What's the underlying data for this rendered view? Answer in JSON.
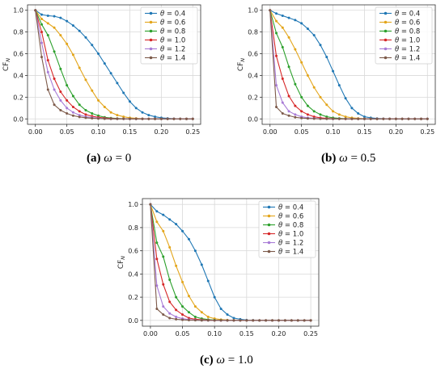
{
  "chart_data": [
    {
      "type": "line",
      "caption": {
        "letter": "(a)",
        "symbol": "ω",
        "value": "= 0"
      },
      "xlabel": "α",
      "ylabel": "CF_N",
      "xlim": [
        -0.0125,
        0.2625
      ],
      "ylim": [
        -0.05,
        1.05
      ],
      "xticks": [
        "0.00",
        "0.05",
        "0.10",
        "0.15",
        "0.20",
        "0.25"
      ],
      "yticks": [
        "0.0",
        "0.2",
        "0.4",
        "0.6",
        "0.8",
        "1.0"
      ],
      "grid": true,
      "legend_position": "top-right",
      "x": [
        0,
        0.01,
        0.02,
        0.03,
        0.04,
        0.05,
        0.06,
        0.07,
        0.08,
        0.09,
        0.1,
        0.11,
        0.12,
        0.13,
        0.14,
        0.15,
        0.16,
        0.17,
        0.18,
        0.19,
        0.2,
        0.21,
        0.22,
        0.23,
        0.24,
        0.25
      ],
      "series": [
        {
          "name": "θ = 0.4",
          "values": [
            1.0,
            0.96,
            0.95,
            0.945,
            0.93,
            0.9,
            0.86,
            0.81,
            0.75,
            0.68,
            0.6,
            0.51,
            0.42,
            0.33,
            0.24,
            0.16,
            0.1,
            0.06,
            0.035,
            0.02,
            0.01,
            0.005,
            0.002,
            0.001,
            0.0,
            0.0
          ]
        },
        {
          "name": "θ = 0.6",
          "values": [
            1.0,
            0.92,
            0.88,
            0.84,
            0.77,
            0.69,
            0.59,
            0.47,
            0.36,
            0.26,
            0.17,
            0.11,
            0.06,
            0.035,
            0.02,
            0.01,
            0.005,
            0.002,
            0.001,
            0.0,
            0.0,
            0.0,
            0.0,
            0.0,
            0.0,
            0.0
          ]
        },
        {
          "name": "θ = 0.8",
          "values": [
            1.0,
            0.87,
            0.77,
            0.62,
            0.46,
            0.31,
            0.21,
            0.13,
            0.08,
            0.05,
            0.03,
            0.015,
            0.008,
            0.004,
            0.002,
            0.001,
            0.0,
            0.0,
            0.0,
            0.0,
            0.0,
            0.0,
            0.0,
            0.0,
            0.0,
            0.0
          ]
        },
        {
          "name": "θ = 1.0",
          "values": [
            1.0,
            0.8,
            0.54,
            0.37,
            0.25,
            0.17,
            0.11,
            0.07,
            0.04,
            0.025,
            0.015,
            0.008,
            0.004,
            0.002,
            0.001,
            0.0,
            0.0,
            0.0,
            0.0,
            0.0,
            0.0,
            0.0,
            0.0,
            0.0,
            0.0,
            0.0
          ]
        },
        {
          "name": "θ = 1.2",
          "values": [
            1.0,
            0.7,
            0.43,
            0.27,
            0.17,
            0.1,
            0.06,
            0.035,
            0.02,
            0.012,
            0.006,
            0.003,
            0.001,
            0.0,
            0.0,
            0.0,
            0.0,
            0.0,
            0.0,
            0.0,
            0.0,
            0.0,
            0.0,
            0.0,
            0.0,
            0.0
          ]
        },
        {
          "name": "θ = 1.4",
          "values": [
            1.0,
            0.57,
            0.27,
            0.13,
            0.08,
            0.05,
            0.03,
            0.018,
            0.01,
            0.006,
            0.003,
            0.001,
            0.0,
            0.0,
            0.0,
            0.0,
            0.0,
            0.0,
            0.0,
            0.0,
            0.0,
            0.0,
            0.0,
            0.0,
            0.0,
            0.0
          ]
        }
      ]
    },
    {
      "type": "line",
      "caption": {
        "letter": "(b)",
        "symbol": "ω",
        "value": "= 0.5"
      },
      "xlabel": "α",
      "ylabel": "CF_N",
      "xlim": [
        -0.0125,
        0.2625
      ],
      "ylim": [
        -0.05,
        1.05
      ],
      "xticks": [
        "0.00",
        "0.05",
        "0.10",
        "0.15",
        "0.20",
        "0.25"
      ],
      "yticks": [
        "0.0",
        "0.2",
        "0.4",
        "0.6",
        "0.8",
        "1.0"
      ],
      "grid": true,
      "legend_position": "top-right",
      "x": [
        0,
        0.01,
        0.02,
        0.03,
        0.04,
        0.05,
        0.06,
        0.07,
        0.08,
        0.09,
        0.1,
        0.11,
        0.12,
        0.13,
        0.14,
        0.15,
        0.16,
        0.17,
        0.18,
        0.19,
        0.2,
        0.21,
        0.22,
        0.23,
        0.24,
        0.25
      ],
      "series": [
        {
          "name": "θ = 0.4",
          "values": [
            1.0,
            0.97,
            0.95,
            0.93,
            0.91,
            0.88,
            0.83,
            0.77,
            0.68,
            0.57,
            0.44,
            0.31,
            0.19,
            0.1,
            0.05,
            0.02,
            0.01,
            0.004,
            0.002,
            0.001,
            0.0,
            0.0,
            0.0,
            0.0,
            0.0,
            0.0
          ]
        },
        {
          "name": "θ = 0.6",
          "values": [
            1.0,
            0.9,
            0.84,
            0.75,
            0.64,
            0.52,
            0.4,
            0.29,
            0.2,
            0.13,
            0.07,
            0.04,
            0.02,
            0.01,
            0.005,
            0.002,
            0.001,
            0.0,
            0.0,
            0.0,
            0.0,
            0.0,
            0.0,
            0.0,
            0.0,
            0.0
          ]
        },
        {
          "name": "θ = 0.8",
          "values": [
            1.0,
            0.79,
            0.66,
            0.48,
            0.32,
            0.2,
            0.12,
            0.07,
            0.04,
            0.02,
            0.01,
            0.005,
            0.002,
            0.001,
            0.0,
            0.0,
            0.0,
            0.0,
            0.0,
            0.0,
            0.0,
            0.0,
            0.0,
            0.0,
            0.0,
            0.0
          ]
        },
        {
          "name": "θ = 1.0",
          "values": [
            1.0,
            0.58,
            0.37,
            0.21,
            0.12,
            0.07,
            0.04,
            0.02,
            0.01,
            0.005,
            0.002,
            0.001,
            0.0,
            0.0,
            0.0,
            0.0,
            0.0,
            0.0,
            0.0,
            0.0,
            0.0,
            0.0,
            0.0,
            0.0,
            0.0,
            0.0
          ]
        },
        {
          "name": "θ = 1.2",
          "values": [
            1.0,
            0.31,
            0.15,
            0.07,
            0.04,
            0.02,
            0.01,
            0.005,
            0.002,
            0.001,
            0.0,
            0.0,
            0.0,
            0.0,
            0.0,
            0.0,
            0.0,
            0.0,
            0.0,
            0.0,
            0.0,
            0.0,
            0.0,
            0.0,
            0.0,
            0.0
          ]
        },
        {
          "name": "θ = 1.4",
          "values": [
            1.0,
            0.11,
            0.05,
            0.03,
            0.015,
            0.008,
            0.004,
            0.002,
            0.001,
            0.0,
            0.0,
            0.0,
            0.0,
            0.0,
            0.0,
            0.0,
            0.0,
            0.0,
            0.0,
            0.0,
            0.0,
            0.0,
            0.0,
            0.0,
            0.0,
            0.0
          ]
        }
      ]
    },
    {
      "type": "line",
      "caption": {
        "letter": "(c)",
        "symbol": "ω",
        "value": "= 1.0"
      },
      "xlabel": "α",
      "ylabel": "CF_N",
      "xlim": [
        -0.0125,
        0.2625
      ],
      "ylim": [
        -0.05,
        1.05
      ],
      "xticks": [
        "0.00",
        "0.05",
        "0.10",
        "0.15",
        "0.20",
        "0.25"
      ],
      "yticks": [
        "0.0",
        "0.2",
        "0.4",
        "0.6",
        "0.8",
        "1.0"
      ],
      "grid": true,
      "legend_position": "top-right",
      "x": [
        0,
        0.01,
        0.02,
        0.03,
        0.04,
        0.05,
        0.06,
        0.07,
        0.08,
        0.09,
        0.1,
        0.11,
        0.12,
        0.13,
        0.14,
        0.15,
        0.16,
        0.17,
        0.18,
        0.19,
        0.2,
        0.21,
        0.22,
        0.23,
        0.24,
        0.25
      ],
      "series": [
        {
          "name": "θ = 0.4",
          "values": [
            1.0,
            0.94,
            0.91,
            0.87,
            0.83,
            0.77,
            0.7,
            0.6,
            0.48,
            0.34,
            0.2,
            0.1,
            0.05,
            0.02,
            0.01,
            0.003,
            0.001,
            0.0,
            0.0,
            0.0,
            0.0,
            0.0,
            0.0,
            0.0,
            0.0,
            0.0
          ]
        },
        {
          "name": "θ = 0.6",
          "values": [
            1.0,
            0.85,
            0.77,
            0.63,
            0.47,
            0.33,
            0.21,
            0.12,
            0.07,
            0.03,
            0.015,
            0.007,
            0.003,
            0.001,
            0.0,
            0.0,
            0.0,
            0.0,
            0.0,
            0.0,
            0.0,
            0.0,
            0.0,
            0.0,
            0.0,
            0.0
          ]
        },
        {
          "name": "θ = 0.8",
          "values": [
            1.0,
            0.67,
            0.55,
            0.35,
            0.2,
            0.12,
            0.07,
            0.03,
            0.015,
            0.007,
            0.003,
            0.001,
            0.0,
            0.0,
            0.0,
            0.0,
            0.0,
            0.0,
            0.0,
            0.0,
            0.0,
            0.0,
            0.0,
            0.0,
            0.0,
            0.0
          ]
        },
        {
          "name": "θ = 1.0",
          "values": [
            1.0,
            0.53,
            0.31,
            0.16,
            0.09,
            0.05,
            0.02,
            0.01,
            0.005,
            0.002,
            0.0,
            0.0,
            0.0,
            0.0,
            0.0,
            0.0,
            0.0,
            0.0,
            0.0,
            0.0,
            0.0,
            0.0,
            0.0,
            0.0,
            0.0,
            0.0
          ]
        },
        {
          "name": "θ = 1.2",
          "values": [
            1.0,
            0.3,
            0.12,
            0.06,
            0.03,
            0.015,
            0.007,
            0.003,
            0.001,
            0.0,
            0.0,
            0.0,
            0.0,
            0.0,
            0.0,
            0.0,
            0.0,
            0.0,
            0.0,
            0.0,
            0.0,
            0.0,
            0.0,
            0.0,
            0.0,
            0.0
          ]
        },
        {
          "name": "θ = 1.4",
          "values": [
            1.0,
            0.1,
            0.05,
            0.02,
            0.01,
            0.005,
            0.002,
            0.001,
            0.0,
            0.0,
            0.0,
            0.0,
            0.0,
            0.0,
            0.0,
            0.0,
            0.0,
            0.0,
            0.0,
            0.0,
            0.0,
            0.0,
            0.0,
            0.0,
            0.0,
            0.0
          ]
        }
      ]
    }
  ],
  "colors": [
    "#1f77b4",
    "#e3a51a",
    "#2ca02c",
    "#d62728",
    "#a87bd6",
    "#7d5a4a"
  ]
}
